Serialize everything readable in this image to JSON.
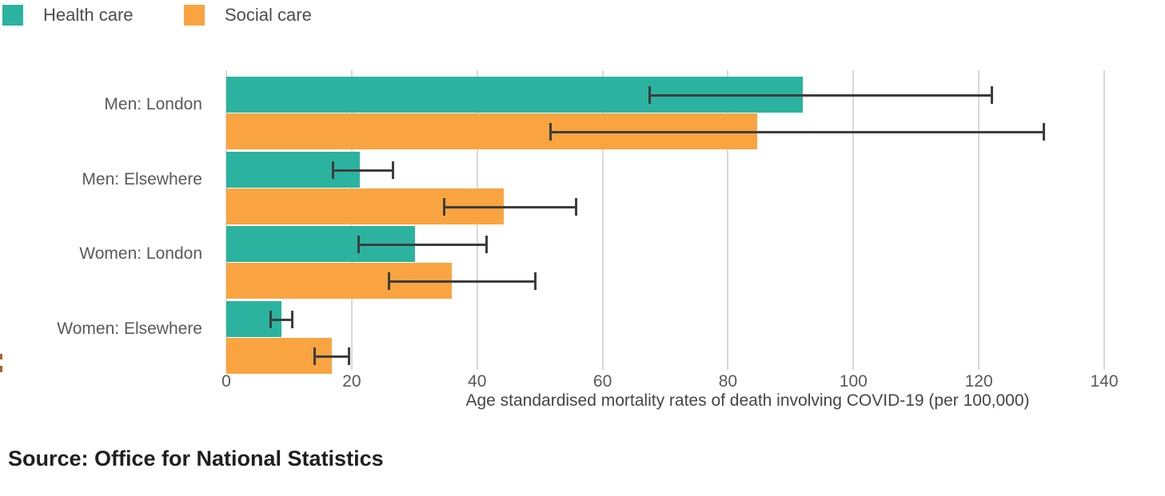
{
  "legend": {
    "items": [
      {
        "label": "Health care",
        "color": "#2bb3a0"
      },
      {
        "label": "Social care",
        "color": "#f9a440"
      }
    ]
  },
  "chart_data": {
    "type": "bar",
    "orientation": "horizontal",
    "title": "",
    "xlabel": "Age standardised mortality rates of death involving COVID-19 (per 100,000)",
    "categories": [
      "Men: London",
      "Men: Elsewhere",
      "Women: London",
      "Women: Elsewhere"
    ],
    "series": [
      {
        "name": "Health care",
        "color": "#2bb3a0",
        "values": [
          91.9,
          21.3,
          30.1,
          8.8
        ],
        "ci_low": [
          67.5,
          16.9,
          21.1,
          7.0
        ],
        "ci_high": [
          122.2,
          26.6,
          41.6,
          10.6
        ]
      },
      {
        "name": "Social care",
        "color": "#f9a440",
        "values": [
          84.7,
          44.2,
          35.9,
          16.8
        ],
        "ci_low": [
          51.6,
          34.7,
          25.9,
          14.0
        ],
        "ci_high": [
          130.4,
          55.9,
          49.3,
          19.6
        ]
      }
    ],
    "x_ticks": [
      0,
      20,
      40,
      60,
      80,
      100,
      120,
      140
    ],
    "xlim": [
      0,
      150
    ],
    "grid": true,
    "error_bars": true,
    "legend_position": "top-left",
    "error_bar_color": "#3d3d3d",
    "gridline_color": "#d8d8d8"
  },
  "source": {
    "label": "Source: Office for National Statistics"
  }
}
